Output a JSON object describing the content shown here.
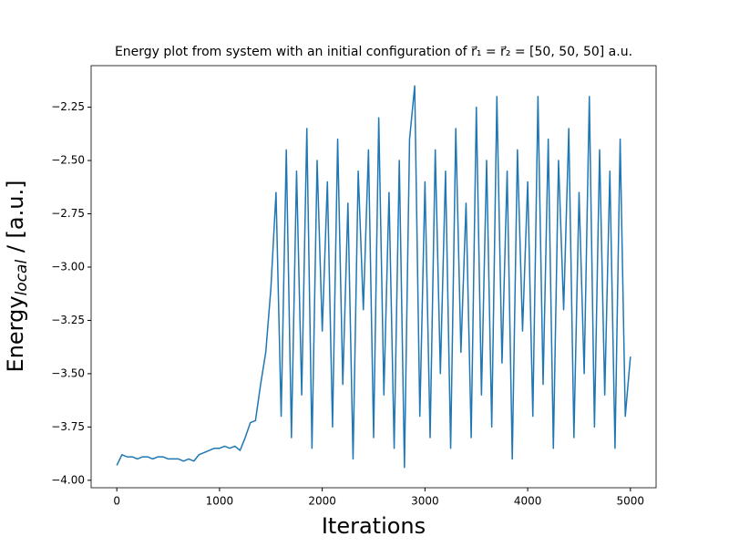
{
  "chart_data": {
    "type": "line",
    "title": "Energy plot from system with an initial configuration of r⃗₁ = r⃗₂ = [50, 50, 50] a.u.",
    "xlabel": "Iterations",
    "ylabel": "Energy",
    "ylabel_subscript": "local",
    "ylabel_suffix": " / [a.u.]",
    "xlim": [
      -250,
      5250
    ],
    "ylim": [
      -4.035,
      -2.055
    ],
    "xticks": [
      0,
      1000,
      2000,
      3000,
      4000,
      5000
    ],
    "yticks": [
      {
        "value": -4.0,
        "label": "−4.00"
      },
      {
        "value": -3.75,
        "label": "−3.75"
      },
      {
        "value": -3.5,
        "label": "−3.50"
      },
      {
        "value": -3.25,
        "label": "−3.25"
      },
      {
        "value": -3.0,
        "label": "−3.00"
      },
      {
        "value": -2.75,
        "label": "−2.75"
      },
      {
        "value": -2.5,
        "label": "−2.50"
      },
      {
        "value": -2.25,
        "label": "−2.25"
      }
    ],
    "grid": false,
    "series": [
      {
        "color": "#1f77b4",
        "x": [
          0,
          50,
          100,
          150,
          200,
          250,
          300,
          350,
          400,
          450,
          500,
          550,
          600,
          650,
          700,
          750,
          800,
          850,
          900,
          950,
          1000,
          1050,
          1100,
          1150,
          1200,
          1250,
          1300,
          1350,
          1400,
          1450,
          1500,
          1550,
          1600,
          1650,
          1700,
          1750,
          1800,
          1850,
          1900,
          1950,
          2000,
          2050,
          2100,
          2150,
          2200,
          2250,
          2300,
          2350,
          2400,
          2450,
          2500,
          2550,
          2600,
          2650,
          2700,
          2750,
          2800,
          2850,
          2900,
          2950,
          3000,
          3050,
          3100,
          3150,
          3200,
          3250,
          3300,
          3350,
          3400,
          3450,
          3500,
          3550,
          3600,
          3650,
          3700,
          3750,
          3800,
          3850,
          3900,
          3950,
          4000,
          4050,
          4100,
          4150,
          4200,
          4250,
          4300,
          4350,
          4400,
          4450,
          4500,
          4550,
          4600,
          4650,
          4700,
          4750,
          4800,
          4850,
          4900,
          4950,
          5000
        ],
        "values": [
          -3.93,
          -3.88,
          -3.89,
          -3.89,
          -3.9,
          -3.89,
          -3.89,
          -3.9,
          -3.89,
          -3.89,
          -3.9,
          -3.9,
          -3.9,
          -3.91,
          -3.9,
          -3.91,
          -3.88,
          -3.87,
          -3.86,
          -3.85,
          -3.85,
          -3.84,
          -3.85,
          -3.84,
          -3.86,
          -3.8,
          -3.73,
          -3.72,
          -3.55,
          -3.4,
          -3.1,
          -2.65,
          -3.7,
          -2.45,
          -3.8,
          -2.55,
          -3.6,
          -2.35,
          -3.85,
          -2.5,
          -3.3,
          -2.6,
          -3.75,
          -2.4,
          -3.55,
          -2.7,
          -3.9,
          -2.55,
          -3.2,
          -2.45,
          -3.8,
          -2.3,
          -3.6,
          -2.65,
          -3.85,
          -2.5,
          -3.94,
          -2.4,
          -2.15,
          -3.7,
          -2.6,
          -3.8,
          -2.45,
          -3.5,
          -2.55,
          -3.85,
          -2.35,
          -3.4,
          -2.7,
          -3.8,
          -2.25,
          -3.6,
          -2.5,
          -3.75,
          -2.2,
          -3.45,
          -2.55,
          -3.9,
          -2.45,
          -3.3,
          -2.6,
          -3.7,
          -2.2,
          -3.55,
          -2.4,
          -3.85,
          -2.5,
          -3.2,
          -2.35,
          -3.8,
          -2.65,
          -3.5,
          -2.2,
          -3.75,
          -2.45,
          -3.6,
          -2.55,
          -3.85,
          -2.4,
          -3.7,
          -3.42
        ]
      }
    ]
  }
}
